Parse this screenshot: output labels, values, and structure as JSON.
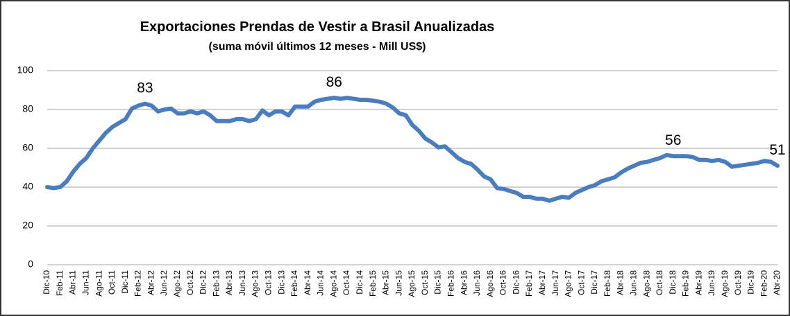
{
  "chart_data": {
    "type": "line",
    "title": "Exportaciones Prendas de Vestir a Brasil Anualizadas",
    "subtitle": "(suma móvil últimos 12 meses - Mill US$)",
    "categories": [
      "Dic-10",
      null,
      "Feb-11",
      null,
      "Abr-11",
      null,
      "Jun-11",
      null,
      "Ago-11",
      null,
      "Oct-11",
      null,
      "Dic-11",
      null,
      "Feb-12",
      null,
      "Abr-12",
      null,
      "Jun-12",
      null,
      "Ago-12",
      null,
      "Oct-12",
      null,
      "Dic-12",
      null,
      "Feb-13",
      null,
      "Abr-13",
      null,
      "Jun-13",
      null,
      "Ago-13",
      null,
      "Oct-13",
      null,
      "Dic-13",
      null,
      "Feb-14",
      null,
      "Abr-14",
      null,
      "Jun-14",
      null,
      "Ago-14",
      null,
      "Oct-14",
      null,
      "Dic-14",
      null,
      "Feb-15",
      null,
      "Abr-15",
      null,
      "Jun-15",
      null,
      "Ago-15",
      null,
      "Oct-15",
      null,
      "Dic-15",
      null,
      "Feb-16",
      null,
      "Abr-16",
      null,
      "Jun-16",
      null,
      "Ago-16",
      null,
      "Oct-16",
      null,
      "Dic-16",
      null,
      "Feb-17",
      null,
      "Abr-17",
      null,
      "Jun-17",
      null,
      "Ago-17",
      null,
      "Oct-17",
      null,
      "Dic-17",
      null,
      "Feb-18",
      null,
      "Abr-18",
      null,
      "Jun-18",
      null,
      "Ago-18",
      null,
      "Oct-18",
      null,
      "Dic-18",
      null,
      "Feb-19",
      null,
      "Abr-19",
      null,
      "Jun-19",
      null,
      "Ago-19",
      null,
      "Oct-19",
      null,
      "Dic-19",
      null,
      "Feb-20",
      null,
      "Abr-20"
    ],
    "values": [
      40,
      39.5,
      40,
      43,
      48,
      52,
      55,
      60,
      64,
      68,
      71,
      73,
      75,
      80.5,
      82,
      83,
      82,
      79,
      80,
      80.5,
      78,
      78,
      79,
      78,
      79,
      77,
      74,
      74,
      74,
      75,
      75,
      74,
      75,
      79.5,
      77,
      79,
      79,
      77,
      81.5,
      81.5,
      81.5,
      84,
      85,
      85.5,
      86,
      85.5,
      86,
      85.5,
      85,
      85,
      84.5,
      84,
      83,
      81,
      78,
      77,
      72,
      69,
      65,
      63,
      60.5,
      61,
      58,
      55,
      53,
      52,
      49,
      45.5,
      44,
      39.5,
      39,
      38,
      37,
      35,
      35,
      34,
      34,
      33,
      34,
      35,
      34.5,
      37,
      38.5,
      40,
      41,
      43,
      44,
      45,
      47.5,
      49.5,
      51,
      52.5,
      53,
      54,
      55,
      56.5,
      56,
      56,
      56,
      55.5,
      54,
      54,
      53.5,
      54,
      53,
      50.5,
      51,
      51.5,
      52,
      52.5,
      53.5,
      53,
      51
    ],
    "value_labels": [
      null,
      null,
      null,
      null,
      null,
      null,
      null,
      null,
      null,
      null,
      null,
      null,
      null,
      null,
      null,
      "83",
      null,
      null,
      null,
      null,
      null,
      null,
      null,
      null,
      null,
      null,
      null,
      null,
      null,
      null,
      null,
      null,
      null,
      null,
      null,
      null,
      null,
      null,
      null,
      null,
      null,
      null,
      null,
      null,
      "86",
      null,
      null,
      null,
      null,
      null,
      null,
      null,
      null,
      null,
      null,
      null,
      null,
      null,
      null,
      null,
      null,
      null,
      null,
      null,
      null,
      null,
      null,
      null,
      null,
      null,
      null,
      null,
      null,
      null,
      null,
      null,
      null,
      null,
      null,
      null,
      null,
      null,
      null,
      null,
      null,
      null,
      null,
      null,
      null,
      null,
      null,
      null,
      null,
      null,
      null,
      null,
      "56",
      null,
      null,
      null,
      null,
      null,
      null,
      null,
      null,
      null,
      null,
      null,
      null,
      null,
      null,
      null,
      "51"
    ],
    "color": "#4a7cc0",
    "ylim": [
      0,
      100
    ],
    "yticks": [
      0,
      20,
      40,
      60,
      80,
      100
    ],
    "grid": true
  }
}
